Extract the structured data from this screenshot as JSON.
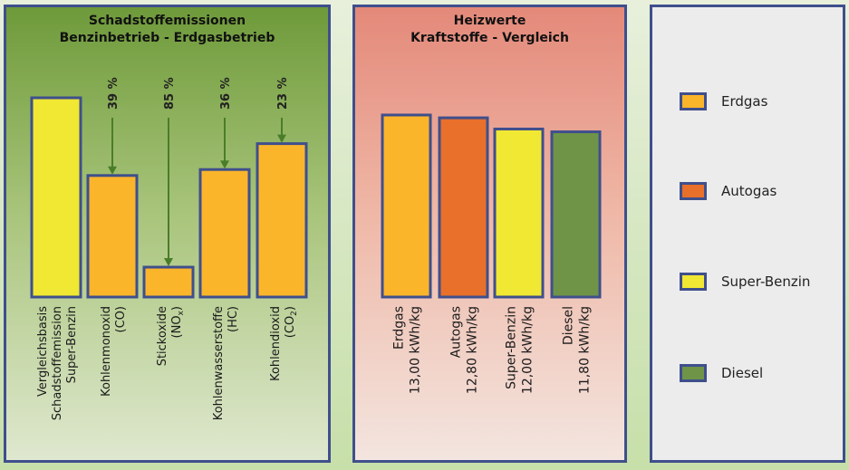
{
  "chart_data": [
    {
      "type": "bar",
      "title": "Schadstoffemissionen",
      "subtitle": "Benzinbetrieb - Erdgasbetrieb",
      "categories": [
        [
          "Vergleichsbasis",
          "Schadstoffemission",
          "Super-Benzin"
        ],
        [
          "Kohlenmonoxid",
          "(CO)"
        ],
        [
          "Stickoxide",
          "(NO",
          "x",
          ")"
        ],
        [
          "Kohlenwasserstoffe",
          "(HC)"
        ],
        [
          "Kohlendioxid",
          "(CO",
          "2",
          ")"
        ]
      ],
      "values": [
        100,
        61,
        15,
        64,
        77
      ],
      "reductions": [
        "",
        "39 %",
        "85 %",
        "36 %",
        "23 %"
      ],
      "colors": [
        "#f0e832",
        "#fbb52b",
        "#fbb52b",
        "#fbb52b",
        "#fbb52b"
      ],
      "arrow_color": "#4a7d2a",
      "ylim": [
        0,
        100
      ],
      "grid": false
    },
    {
      "type": "bar",
      "title": "Heizwerte",
      "subtitle": "Kraftstoffe - Vergleich",
      "categories": [
        [
          "Erdgas",
          "13,00 kWh/kg"
        ],
        [
          "Autogas",
          "12,80 kWh/kg"
        ],
        [
          "Super-Benzin",
          "12,00 kWh/kg"
        ],
        [
          "Diesel",
          "11,80 kWh/kg"
        ]
      ],
      "values": [
        13.0,
        12.8,
        12.0,
        11.8
      ],
      "colors": [
        "#fbb52b",
        "#e8702a",
        "#f0e832",
        "#6f9448"
      ],
      "ylim": [
        0,
        13.0
      ],
      "grid": false
    }
  ],
  "legend": [
    {
      "label": "Erdgas",
      "color": "#fbb52b"
    },
    {
      "label": "Autogas",
      "color": "#e8702a"
    },
    {
      "label": "Super-Benzin",
      "color": "#f0e832"
    },
    {
      "label": "Diesel",
      "color": "#6f9448"
    }
  ]
}
